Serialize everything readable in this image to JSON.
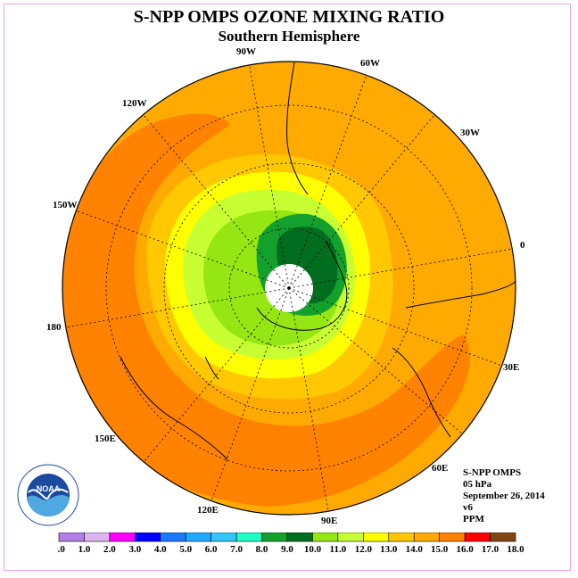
{
  "title": "S-NPP OMPS OZONE MIXING RATIO",
  "subtitle": "Southern Hemisphere",
  "info": {
    "instrument": "S-NPP OMPS",
    "level": "05 hPa",
    "date": "September 26, 2014",
    "version": "v6",
    "units": "PPM"
  },
  "logo_text": "NOAA",
  "longitude_labels": [
    {
      "label": "90W",
      "key": "lon_90w"
    },
    {
      "label": "60W",
      "key": "lon_60w"
    },
    {
      "label": "30W",
      "key": "lon_30w"
    },
    {
      "label": "0",
      "key": "lon_0"
    },
    {
      "label": "30E",
      "key": "lon_30e"
    },
    {
      "label": "60E",
      "key": "lon_60e"
    },
    {
      "label": "90E",
      "key": "lon_90e"
    },
    {
      "label": "120E",
      "key": "lon_120e"
    },
    {
      "label": "150E",
      "key": "lon_150e"
    },
    {
      "label": "180",
      "key": "lon_180"
    },
    {
      "label": "150W",
      "key": "lon_150w"
    },
    {
      "label": "120W",
      "key": "lon_120w"
    }
  ],
  "colorbar": {
    "ticks": [
      "0.0",
      "1.0",
      "2.0",
      "3.0",
      "4.0",
      "5.0",
      "6.0",
      "7.0",
      "8.0",
      "9.0",
      "10.0",
      "11.0",
      "12.0",
      "13.0",
      "14.0",
      "15.0",
      "16.0",
      "17.0",
      "18.0"
    ],
    "colors": [
      "#b27ee6",
      "#dcb4f0",
      "#ff00ff",
      "#0000ff",
      "#1e78ff",
      "#1eaaff",
      "#32c8ff",
      "#1effc8",
      "#14a02d",
      "#006e1e",
      "#96e614",
      "#c8ff32",
      "#ffff00",
      "#ffc800",
      "#ffaa00",
      "#ff8200",
      "#ff0000",
      "#824614"
    ]
  },
  "map_colors": {
    "background": "#ffaa00",
    "band_15_16": "#ff8200",
    "level_14": "#ffc800",
    "level_13": "#ffff00",
    "level_12": "#c8ff32",
    "level_11": "#96e614",
    "level_9": "#14a02d",
    "level_10": "#006e1e",
    "no_data": "#ffffff"
  }
}
